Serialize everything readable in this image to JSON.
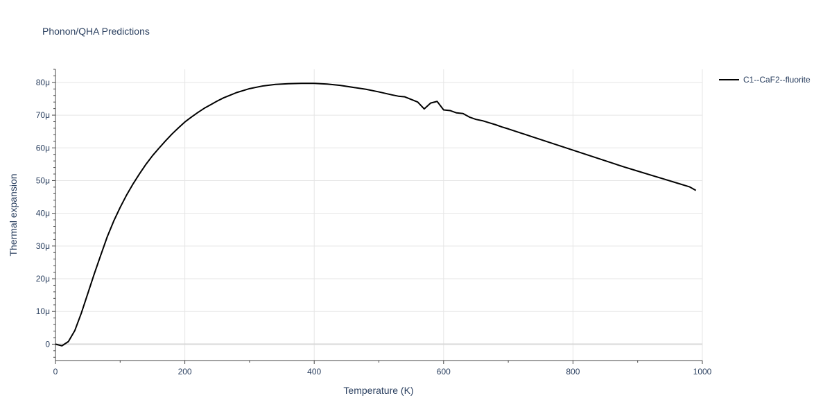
{
  "chart_data": {
    "type": "line",
    "title": "Phonon/QHA Predictions",
    "xlabel": "Temperature (K)",
    "ylabel": "Thermal expansion",
    "xlim": [
      0,
      1000
    ],
    "ylim": [
      -5e-06,
      8.4e-05
    ],
    "x_ticks": [
      0,
      200,
      400,
      600,
      800,
      1000
    ],
    "x_tick_labels": [
      "0",
      "200",
      "400",
      "600",
      "800",
      "1000"
    ],
    "y_ticks": [
      0,
      1e-05,
      2e-05,
      3e-05,
      4e-05,
      5e-05,
      6e-05,
      7e-05,
      8e-05
    ],
    "y_tick_labels": [
      "0",
      "10μ",
      "20μ",
      "30μ",
      "40μ",
      "50μ",
      "60μ",
      "70μ",
      "80μ"
    ],
    "grid": true,
    "legend_position": "top-right",
    "colors": {
      "grid": "#e5e5e5",
      "zeroline": "#d9d9d9",
      "axis": "#444444",
      "text": "#2a3f5f",
      "series": "#000000"
    },
    "series": [
      {
        "name": "C1--CaF2--fluorite",
        "color": "#000000",
        "x": [
          0,
          10,
          20,
          30,
          40,
          50,
          60,
          70,
          80,
          90,
          100,
          110,
          120,
          130,
          140,
          150,
          160,
          170,
          180,
          190,
          200,
          210,
          220,
          230,
          240,
          250,
          260,
          270,
          280,
          290,
          300,
          320,
          340,
          360,
          380,
          400,
          420,
          440,
          460,
          480,
          500,
          520,
          530,
          540,
          550,
          560,
          570,
          580,
          590,
          600,
          610,
          620,
          630,
          640,
          650,
          660,
          670,
          680,
          690,
          700,
          720,
          740,
          760,
          780,
          800,
          820,
          840,
          860,
          880,
          900,
          920,
          940,
          960,
          980,
          990
        ],
        "y": [
          0,
          -5e-07,
          8e-07,
          4.2e-06,
          9.5e-06,
          1.55e-05,
          2.15e-05,
          2.72e-05,
          3.28e-05,
          3.76e-05,
          4.18e-05,
          4.56e-05,
          4.9e-05,
          5.21e-05,
          5.5e-05,
          5.76e-05,
          5.99e-05,
          6.21e-05,
          6.42e-05,
          6.61e-05,
          6.79e-05,
          6.94e-05,
          7.08e-05,
          7.21e-05,
          7.32e-05,
          7.43e-05,
          7.53e-05,
          7.61e-05,
          7.69e-05,
          7.75e-05,
          7.81e-05,
          7.89e-05,
          7.94e-05,
          7.96e-05,
          7.97e-05,
          7.97e-05,
          7.95e-05,
          7.91e-05,
          7.85e-05,
          7.79e-05,
          7.71e-05,
          7.62e-05,
          7.58e-05,
          7.56e-05,
          7.48e-05,
          7.4e-05,
          7.19e-05,
          7.37e-05,
          7.42e-05,
          7.16e-05,
          7.14e-05,
          7.07e-05,
          7.05e-05,
          6.94e-05,
          6.87e-05,
          6.83e-05,
          6.77e-05,
          6.71e-05,
          6.64e-05,
          6.58e-05,
          6.45e-05,
          6.32e-05,
          6.19e-05,
          6.06e-05,
          5.93e-05,
          5.8e-05,
          5.67e-05,
          5.54e-05,
          5.41e-05,
          5.29e-05,
          5.17e-05,
          5.05e-05,
          4.93e-05,
          4.81e-05,
          4.7e-05
        ]
      }
    ]
  }
}
